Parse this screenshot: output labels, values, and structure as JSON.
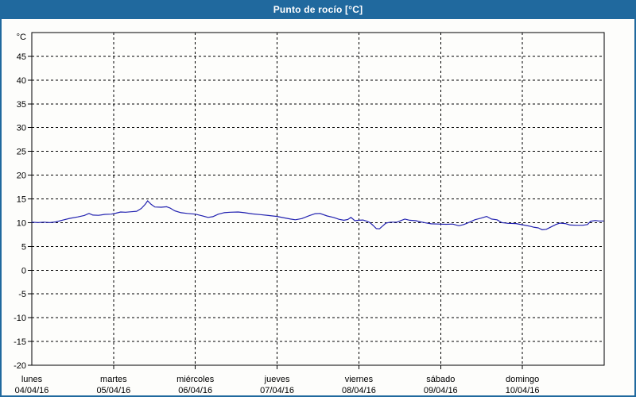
{
  "window": {
    "title": "Punto de rocío [°C]"
  },
  "colors": {
    "titlebar": "#20699e",
    "frame": "#20699e",
    "background": "#fdfdfb",
    "plot_border": "#000000",
    "grid": "#000000",
    "line": "#2222b0"
  },
  "chart_data": {
    "type": "line",
    "title": "Punto de rocío [°C]",
    "y_unit_label": "°C",
    "xlabel": "",
    "ylabel": "°C",
    "ylim": [
      -20,
      50
    ],
    "yticks": [
      -20,
      -15,
      -10,
      -5,
      0,
      5,
      10,
      15,
      20,
      25,
      30,
      35,
      40,
      45
    ],
    "grid": "dashed",
    "legend": "none",
    "x_days": [
      {
        "name": "lunes",
        "date": "04/04/16"
      },
      {
        "name": "martes",
        "date": "05/04/16"
      },
      {
        "name": "miércoles",
        "date": "06/04/16"
      },
      {
        "name": "jueves",
        "date": "07/04/16"
      },
      {
        "name": "viernes",
        "date": "08/04/16"
      },
      {
        "name": "sábado",
        "date": "09/04/16"
      },
      {
        "name": "domingo",
        "date": "10/04/16"
      }
    ],
    "series": [
      {
        "name": "Punto de rocío",
        "color": "#2222b0",
        "x_unit": "days_from_monday_00h",
        "points": [
          [
            0.0,
            10.1
          ],
          [
            0.078,
            10.0
          ],
          [
            0.146,
            10.1
          ],
          [
            0.223,
            10.0
          ],
          [
            0.291,
            10.15
          ],
          [
            0.369,
            10.5
          ],
          [
            0.466,
            10.9
          ],
          [
            0.563,
            11.2
          ],
          [
            0.641,
            11.5
          ],
          [
            0.699,
            11.95
          ],
          [
            0.748,
            11.6
          ],
          [
            0.816,
            11.55
          ],
          [
            0.893,
            11.75
          ],
          [
            0.971,
            11.8
          ],
          [
            1.029,
            12.0
          ],
          [
            1.087,
            12.25
          ],
          [
            1.146,
            12.2
          ],
          [
            1.214,
            12.3
          ],
          [
            1.282,
            12.4
          ],
          [
            1.34,
            13.0
          ],
          [
            1.388,
            13.9
          ],
          [
            1.417,
            14.6
          ],
          [
            1.456,
            13.9
          ],
          [
            1.505,
            13.3
          ],
          [
            1.583,
            13.25
          ],
          [
            1.65,
            13.35
          ],
          [
            1.689,
            13.1
          ],
          [
            1.748,
            12.5
          ],
          [
            1.825,
            12.1
          ],
          [
            1.903,
            11.95
          ],
          [
            2.0,
            11.8
          ],
          [
            2.078,
            11.45
          ],
          [
            2.155,
            11.1
          ],
          [
            2.214,
            11.25
          ],
          [
            2.282,
            11.8
          ],
          [
            2.35,
            12.1
          ],
          [
            2.427,
            12.2
          ],
          [
            2.524,
            12.25
          ],
          [
            2.602,
            12.1
          ],
          [
            2.699,
            11.85
          ],
          [
            2.796,
            11.7
          ],
          [
            2.893,
            11.5
          ],
          [
            3.0,
            11.3
          ],
          [
            3.087,
            11.0
          ],
          [
            3.165,
            10.75
          ],
          [
            3.223,
            10.6
          ],
          [
            3.301,
            10.85
          ],
          [
            3.398,
            11.5
          ],
          [
            3.466,
            11.9
          ],
          [
            3.524,
            11.95
          ],
          [
            3.612,
            11.4
          ],
          [
            3.689,
            11.1
          ],
          [
            3.757,
            10.7
          ],
          [
            3.816,
            10.5
          ],
          [
            3.864,
            10.65
          ],
          [
            3.903,
            11.1
          ],
          [
            3.951,
            10.4
          ],
          [
            4.0,
            10.5
          ],
          [
            4.049,
            10.55
          ],
          [
            4.097,
            10.3
          ],
          [
            4.136,
            10.0
          ],
          [
            4.175,
            9.4
          ],
          [
            4.214,
            8.75
          ],
          [
            4.252,
            8.7
          ],
          [
            4.291,
            9.3
          ],
          [
            4.33,
            9.9
          ],
          [
            4.388,
            10.1
          ],
          [
            4.466,
            10.1
          ],
          [
            4.524,
            10.5
          ],
          [
            4.563,
            10.75
          ],
          [
            4.621,
            10.5
          ],
          [
            4.699,
            10.4
          ],
          [
            4.757,
            10.15
          ],
          [
            4.816,
            9.95
          ],
          [
            4.883,
            9.75
          ],
          [
            4.971,
            9.7
          ],
          [
            5.068,
            9.65
          ],
          [
            5.146,
            9.7
          ],
          [
            5.223,
            9.35
          ],
          [
            5.282,
            9.6
          ],
          [
            5.34,
            10.0
          ],
          [
            5.417,
            10.6
          ],
          [
            5.495,
            10.95
          ],
          [
            5.563,
            11.3
          ],
          [
            5.621,
            10.75
          ],
          [
            5.689,
            10.6
          ],
          [
            5.748,
            10.0
          ],
          [
            5.825,
            9.85
          ],
          [
            5.922,
            9.8
          ],
          [
            6.0,
            9.55
          ],
          [
            6.078,
            9.3
          ],
          [
            6.136,
            9.05
          ],
          [
            6.194,
            8.9
          ],
          [
            6.243,
            8.5
          ],
          [
            6.291,
            8.6
          ],
          [
            6.35,
            9.1
          ],
          [
            6.408,
            9.6
          ],
          [
            6.456,
            9.9
          ],
          [
            6.524,
            9.8
          ],
          [
            6.583,
            9.5
          ],
          [
            6.66,
            9.45
          ],
          [
            6.738,
            9.45
          ],
          [
            6.796,
            9.6
          ],
          [
            6.835,
            10.3
          ],
          [
            6.893,
            10.45
          ],
          [
            6.932,
            10.35
          ],
          [
            6.99,
            10.35
          ]
        ]
      }
    ]
  }
}
